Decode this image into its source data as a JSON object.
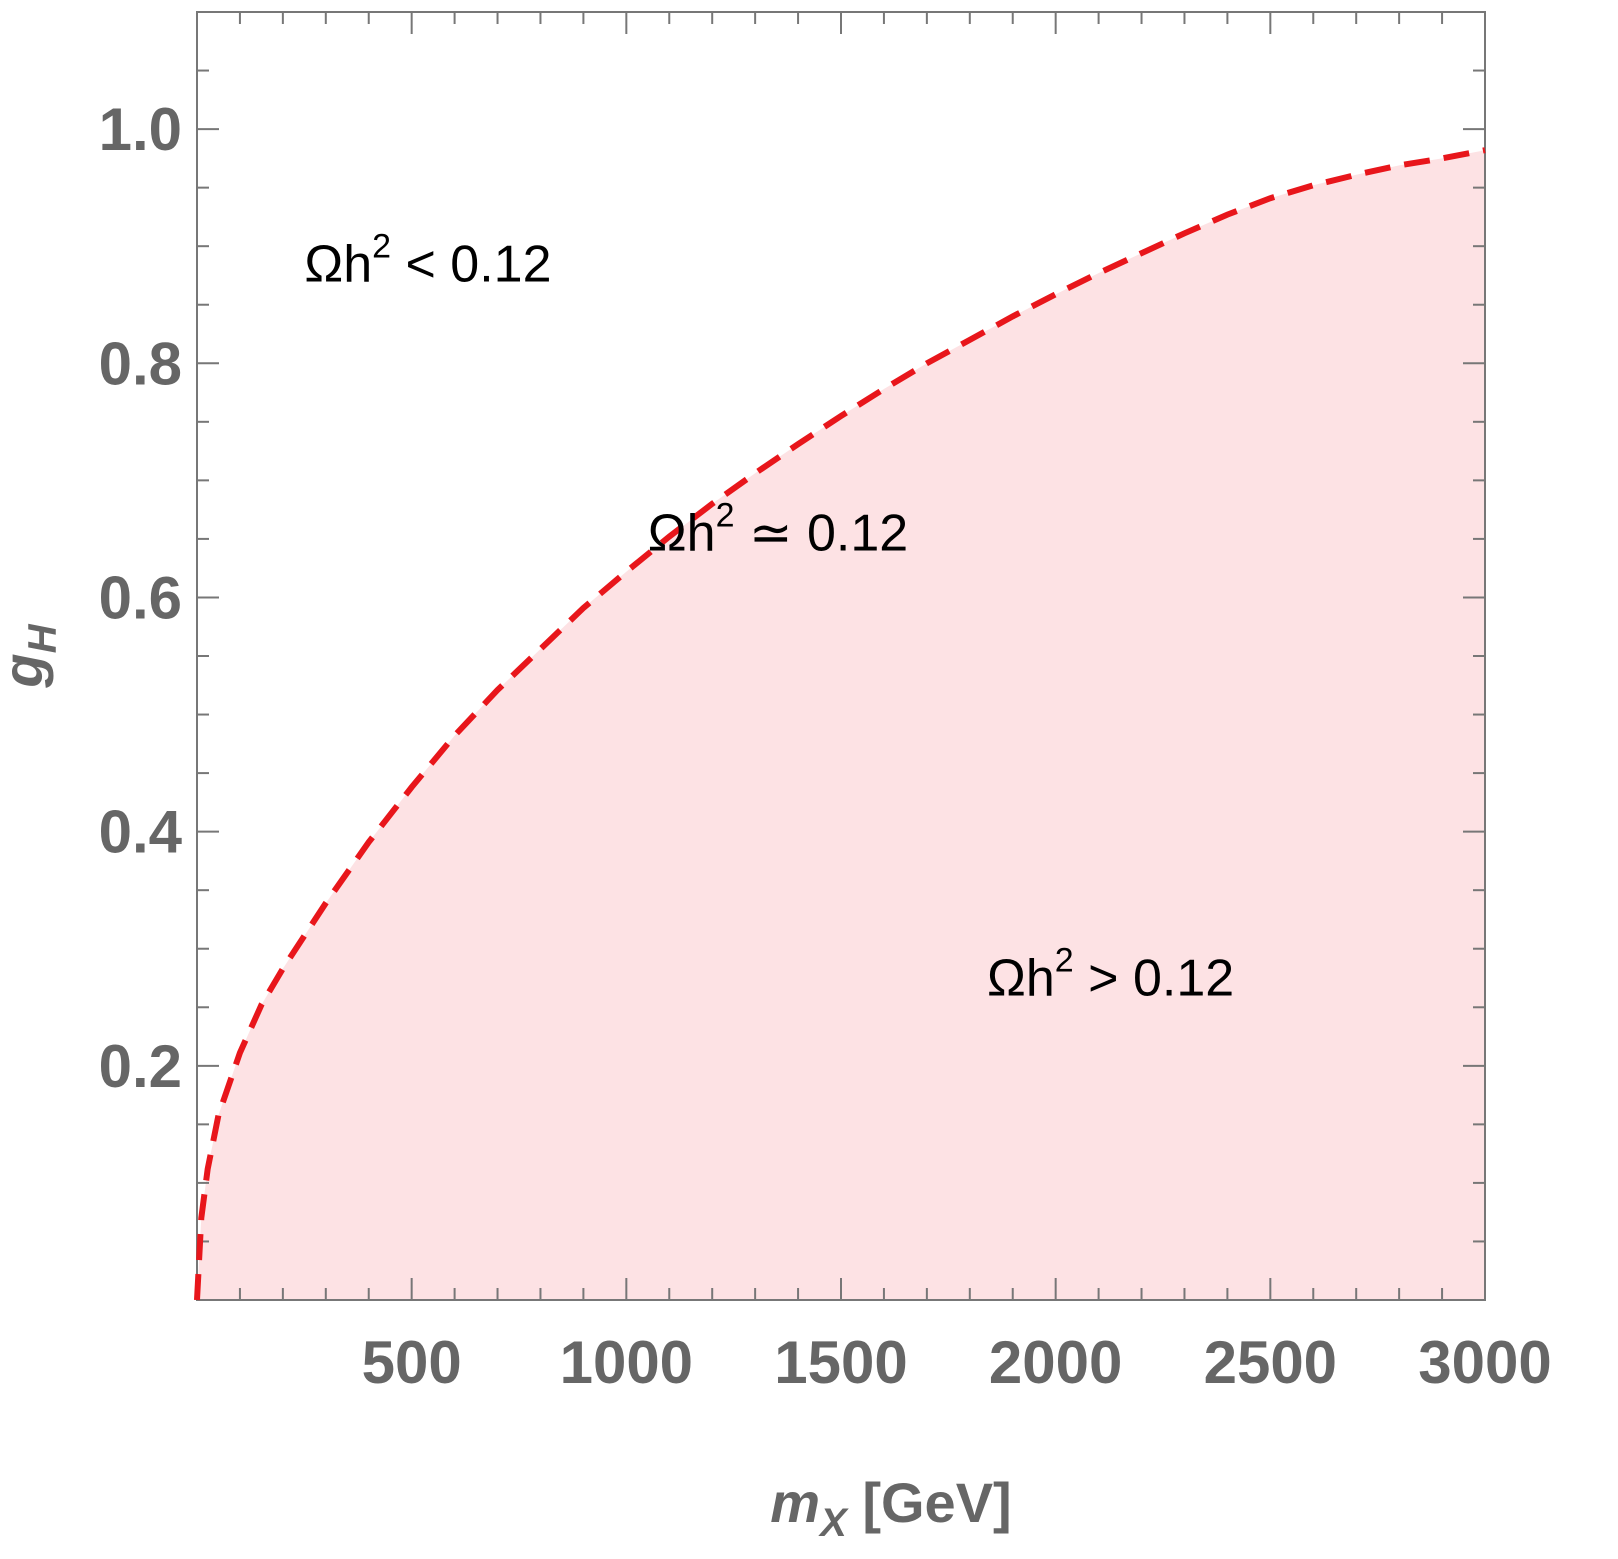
{
  "chart_data": {
    "type": "area",
    "title": "",
    "xlabel": {
      "main": "m",
      "sub": "X",
      "unit": " [GeV]"
    },
    "ylabel": {
      "main": "g",
      "sub": "H"
    },
    "xlim": [
      0,
      3000
    ],
    "ylim": [
      0,
      1.1
    ],
    "x_ticks": [
      500,
      1000,
      1500,
      2000,
      2500,
      3000
    ],
    "x_tick_labels": [
      "500",
      "1000",
      "1500",
      "2000",
      "2500",
      "3000"
    ],
    "y_ticks": [
      0.2,
      0.4,
      0.6,
      0.8,
      1.0
    ],
    "y_tick_labels": [
      "0.2",
      "0.4",
      "0.6",
      "0.8",
      "1.0"
    ],
    "grid": false,
    "series": [
      {
        "style": "dashed",
        "color": "#e8161b",
        "fill_below": "#fde2e4",
        "x": [
          0,
          10,
          25,
          50,
          100,
          150,
          200,
          300,
          400,
          500,
          600,
          700,
          800,
          900,
          1000,
          1100,
          1200,
          1300,
          1400,
          1500,
          1600,
          1700,
          1800,
          1900,
          2000,
          2100,
          2200,
          2300,
          2400,
          2500,
          2600,
          2700,
          2800,
          2900,
          3000
        ],
        "y": [
          0.0,
          0.07,
          0.112,
          0.158,
          0.211,
          0.252,
          0.283,
          0.339,
          0.391,
          0.438,
          0.482,
          0.521,
          0.556,
          0.591,
          0.622,
          0.652,
          0.68,
          0.706,
          0.731,
          0.755,
          0.778,
          0.8,
          0.82,
          0.84,
          0.859,
          0.877,
          0.894,
          0.911,
          0.927,
          0.941,
          0.952,
          0.961,
          0.969,
          0.975,
          0.982
        ]
      }
    ],
    "annotations": [
      {
        "main": "Ωh",
        "sup": "2",
        "rest": " < 0.12",
        "x": 250,
        "y": 0.87
      },
      {
        "main": "Ωh",
        "sup": "2",
        "rest": " ≃ 0.12",
        "x": 1050,
        "y": 0.64
      },
      {
        "main": "Ωh",
        "sup": "2",
        "rest": " > 0.12",
        "x": 1840,
        "y": 0.26
      }
    ],
    "colors": {
      "frame": "#777777",
      "curve": "#e8161b",
      "fill": "#fde2e4",
      "text": "#666666"
    }
  }
}
